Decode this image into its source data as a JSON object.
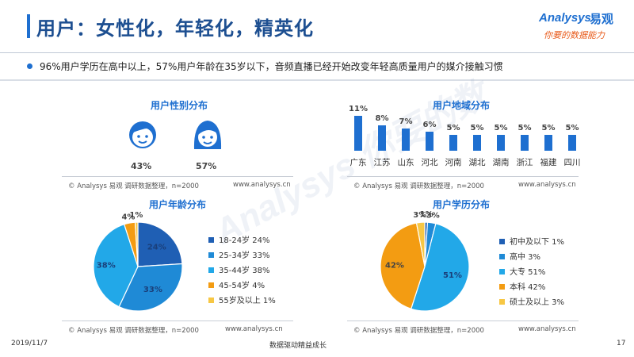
{
  "header": {
    "title": "用户：女性化，年轻化，精英化",
    "logo_en": "Analysys",
    "logo_cn": "易观",
    "logo_slogan": "你要的数据能力"
  },
  "summary": "96%用户学历在高中以上，57%用户年龄在35岁以下，音频直播已经开始改变年轻高质量用户的媒介接触习惯",
  "watermark": "Analysys 你要的数",
  "source_text": "© Analysys 易观 调研数据整理，n=2000",
  "source_url": "www.analysys.cn",
  "footer": {
    "date": "2019/11/7",
    "center": "数据驱动精益成长",
    "page": "17"
  },
  "colors": {
    "primary": "#1e6fd0",
    "title": "#1d4f91",
    "age": [
      "#1f5fb4",
      "#1f8ad6",
      "#22a8e8",
      "#f39c12",
      "#f7c744"
    ],
    "edu": [
      "#1f5fb4",
      "#1f8ad6",
      "#22a8e8",
      "#f39c12",
      "#f7c744"
    ]
  },
  "chart_data": [
    {
      "type": "pie",
      "title": "用户性别分布",
      "categories": [
        "male-icon",
        "female-icon"
      ],
      "values": [
        43,
        57
      ],
      "labels": [
        "43%",
        "57%"
      ]
    },
    {
      "type": "bar",
      "title": "用户地域分布",
      "categories": [
        "广东",
        "江苏",
        "山东",
        "河北",
        "河南",
        "湖北",
        "湖南",
        "浙江",
        "福建",
        "四川"
      ],
      "values": [
        11,
        8,
        7,
        6,
        5,
        5,
        5,
        5,
        5,
        5
      ],
      "labels": [
        "11%",
        "8%",
        "7%",
        "6%",
        "5%",
        "5%",
        "5%",
        "5%",
        "5%",
        "5%"
      ],
      "ylim": [
        0,
        11
      ]
    },
    {
      "type": "pie",
      "title": "用户年龄分布",
      "categories": [
        "18-24岁",
        "25-34岁",
        "35-44岁",
        "45-54岁",
        "55岁及以上"
      ],
      "values": [
        24,
        33,
        38,
        4,
        1
      ],
      "legend": [
        "18-24岁 24%",
        "25-34岁 33%",
        "35-44岁 38%",
        "45-54岁 4%",
        "55岁及以上 1%"
      ],
      "labels": [
        "24%",
        "33%",
        "38%",
        "4%",
        "1%"
      ],
      "legend_position": "right"
    },
    {
      "type": "pie",
      "title": "用户学历分布",
      "categories": [
        "初中及以下",
        "高中",
        "大专",
        "本科",
        "硕士及以上"
      ],
      "values": [
        1,
        3,
        51,
        42,
        3
      ],
      "legend": [
        "初中及以下 1%",
        "高中 3%",
        "大专 51%",
        "本科 42%",
        "硕士及以上 3%"
      ],
      "labels": [
        "1%",
        "3%",
        "51%",
        "42%",
        "3%"
      ],
      "legend_position": "right"
    }
  ]
}
